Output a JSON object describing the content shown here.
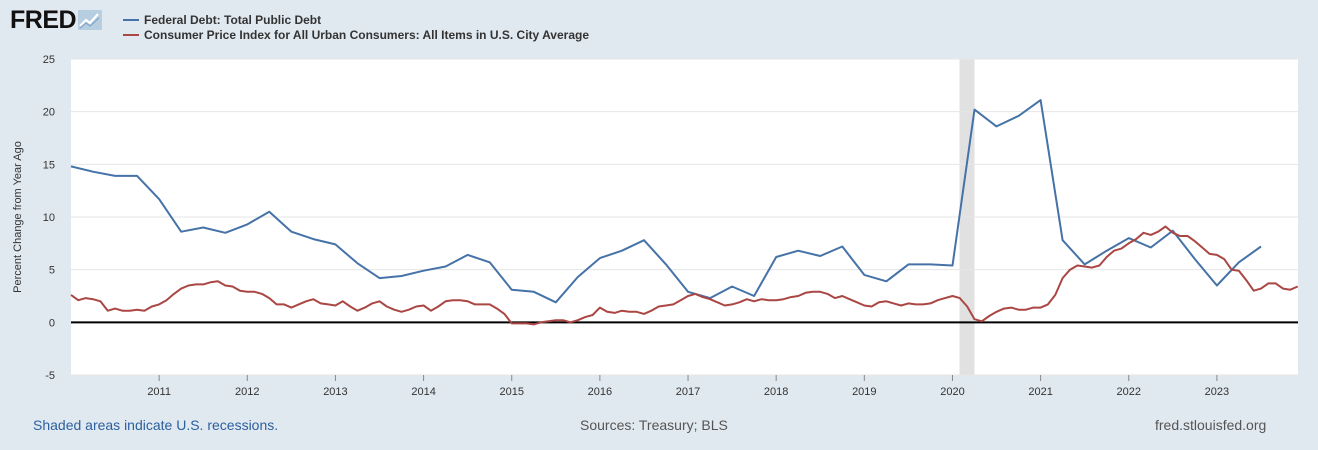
{
  "header": {
    "logo_text": "FRED",
    "logo_icon": "chart-line-icon"
  },
  "chart_data": {
    "type": "line",
    "ylabel": "Percent Change from Year Ago",
    "ylim": [
      -5,
      25
    ],
    "y_ticks": [
      "25",
      "20",
      "15",
      "10",
      "5",
      "0",
      "-5"
    ],
    "x_range": [
      2010.0,
      2023.92
    ],
    "x_ticks": [
      "2011",
      "2012",
      "2013",
      "2014",
      "2015",
      "2016",
      "2017",
      "2018",
      "2019",
      "2020",
      "2021",
      "2022",
      "2023"
    ],
    "grid": true,
    "legend_position": "top-left",
    "recessions": [
      [
        2020.08,
        2020.25
      ]
    ],
    "series": [
      {
        "name": "Federal Debt: Total Public Debt",
        "color": "#4572a7",
        "x": [
          2010.0,
          2010.25,
          2010.5,
          2010.75,
          2011.0,
          2011.25,
          2011.5,
          2011.75,
          2012.0,
          2012.25,
          2012.5,
          2012.75,
          2013.0,
          2013.25,
          2013.5,
          2013.75,
          2014.0,
          2014.25,
          2014.5,
          2014.75,
          2015.0,
          2015.25,
          2015.5,
          2015.75,
          2016.0,
          2016.25,
          2016.5,
          2016.75,
          2017.0,
          2017.25,
          2017.5,
          2017.75,
          2018.0,
          2018.25,
          2018.5,
          2018.75,
          2019.0,
          2019.25,
          2019.5,
          2019.75,
          2020.0,
          2020.25,
          2020.5,
          2020.75,
          2021.0,
          2021.25,
          2021.5,
          2021.75,
          2022.0,
          2022.25,
          2022.5,
          2022.75,
          2023.0,
          2023.25,
          2023.5
        ],
        "values": [
          14.8,
          14.3,
          13.9,
          13.9,
          11.7,
          8.6,
          9.0,
          8.5,
          9.3,
          10.5,
          8.6,
          7.9,
          7.4,
          5.6,
          4.2,
          4.4,
          4.9,
          5.3,
          6.4,
          5.7,
          3.1,
          2.9,
          1.9,
          4.3,
          6.1,
          6.8,
          7.8,
          5.5,
          2.9,
          2.3,
          3.4,
          2.5,
          6.2,
          6.8,
          6.3,
          7.2,
          4.5,
          3.9,
          5.5,
          5.5,
          5.4,
          20.2,
          18.6,
          19.6,
          21.1,
          7.8,
          5.5,
          6.8,
          8.0,
          7.1,
          8.7,
          6.0,
          3.5,
          5.7,
          7.2
        ]
      },
      {
        "name": "Consumer Price Index for All Urban Consumers: All Items in U.S. City Average",
        "color": "#aa4643",
        "x": [
          2010.0,
          2010.083,
          2010.167,
          2010.25,
          2010.333,
          2010.417,
          2010.5,
          2010.583,
          2010.667,
          2010.75,
          2010.833,
          2010.917,
          2011.0,
          2011.083,
          2011.167,
          2011.25,
          2011.333,
          2011.417,
          2011.5,
          2011.583,
          2011.667,
          2011.75,
          2011.833,
          2011.917,
          2012.0,
          2012.083,
          2012.167,
          2012.25,
          2012.333,
          2012.417,
          2012.5,
          2012.583,
          2012.667,
          2012.75,
          2012.833,
          2012.917,
          2013.0,
          2013.083,
          2013.167,
          2013.25,
          2013.333,
          2013.417,
          2013.5,
          2013.583,
          2013.667,
          2013.75,
          2013.833,
          2013.917,
          2014.0,
          2014.083,
          2014.167,
          2014.25,
          2014.333,
          2014.417,
          2014.5,
          2014.583,
          2014.667,
          2014.75,
          2014.833,
          2014.917,
          2015.0,
          2015.083,
          2015.167,
          2015.25,
          2015.333,
          2015.417,
          2015.5,
          2015.583,
          2015.667,
          2015.75,
          2015.833,
          2015.917,
          2016.0,
          2016.083,
          2016.167,
          2016.25,
          2016.333,
          2016.417,
          2016.5,
          2016.583,
          2016.667,
          2016.75,
          2016.833,
          2016.917,
          2017.0,
          2017.083,
          2017.167,
          2017.25,
          2017.333,
          2017.417,
          2017.5,
          2017.583,
          2017.667,
          2017.75,
          2017.833,
          2017.917,
          2018.0,
          2018.083,
          2018.167,
          2018.25,
          2018.333,
          2018.417,
          2018.5,
          2018.583,
          2018.667,
          2018.75,
          2018.833,
          2018.917,
          2019.0,
          2019.083,
          2019.167,
          2019.25,
          2019.333,
          2019.417,
          2019.5,
          2019.583,
          2019.667,
          2019.75,
          2019.833,
          2019.917,
          2020.0,
          2020.083,
          2020.167,
          2020.25,
          2020.333,
          2020.417,
          2020.5,
          2020.583,
          2020.667,
          2020.75,
          2020.833,
          2020.917,
          2021.0,
          2021.083,
          2021.167,
          2021.25,
          2021.333,
          2021.417,
          2021.5,
          2021.583,
          2021.667,
          2021.75,
          2021.833,
          2021.917,
          2022.0,
          2022.083,
          2022.167,
          2022.25,
          2022.333,
          2022.417,
          2022.5,
          2022.583,
          2022.667,
          2022.75,
          2022.833,
          2022.917,
          2023.0,
          2023.083,
          2023.167,
          2023.25,
          2023.333,
          2023.417,
          2023.5,
          2023.583,
          2023.667,
          2023.75,
          2023.833,
          2023.917
        ],
        "values": [
          2.6,
          2.1,
          2.3,
          2.2,
          2.0,
          1.1,
          1.3,
          1.1,
          1.1,
          1.2,
          1.1,
          1.5,
          1.7,
          2.1,
          2.7,
          3.2,
          3.5,
          3.6,
          3.6,
          3.8,
          3.9,
          3.5,
          3.4,
          3.0,
          2.9,
          2.9,
          2.7,
          2.3,
          1.7,
          1.7,
          1.4,
          1.7,
          2.0,
          2.2,
          1.8,
          1.7,
          1.6,
          2.0,
          1.5,
          1.1,
          1.4,
          1.8,
          2.0,
          1.5,
          1.2,
          1.0,
          1.2,
          1.5,
          1.6,
          1.1,
          1.5,
          2.0,
          2.1,
          2.1,
          2.0,
          1.7,
          1.7,
          1.7,
          1.3,
          0.8,
          -0.1,
          -0.1,
          -0.1,
          -0.2,
          0.0,
          0.1,
          0.2,
          0.2,
          0.0,
          0.2,
          0.5,
          0.7,
          1.4,
          1.0,
          0.9,
          1.1,
          1.0,
          1.0,
          0.8,
          1.1,
          1.5,
          1.6,
          1.7,
          2.1,
          2.5,
          2.7,
          2.4,
          2.2,
          1.9,
          1.6,
          1.7,
          1.9,
          2.2,
          2.0,
          2.2,
          2.1,
          2.1,
          2.2,
          2.4,
          2.5,
          2.8,
          2.9,
          2.9,
          2.7,
          2.3,
          2.5,
          2.2,
          1.9,
          1.6,
          1.5,
          1.9,
          2.0,
          1.8,
          1.6,
          1.8,
          1.7,
          1.7,
          1.8,
          2.1,
          2.3,
          2.5,
          2.3,
          1.5,
          0.3,
          0.1,
          0.6,
          1.0,
          1.3,
          1.4,
          1.2,
          1.2,
          1.4,
          1.4,
          1.7,
          2.6,
          4.2,
          5.0,
          5.4,
          5.3,
          5.2,
          5.4,
          6.2,
          6.8,
          7.0,
          7.5,
          7.9,
          8.5,
          8.3,
          8.6,
          9.1,
          8.5,
          8.2,
          8.2,
          7.7,
          7.1,
          6.5,
          6.4,
          6.0,
          5.0,
          4.9,
          4.0,
          3.0,
          3.2,
          3.7,
          3.7,
          3.2,
          3.1,
          3.4
        ]
      }
    ]
  },
  "footer": {
    "recession_note": "Shaded areas indicate U.S. recessions.",
    "sources": "Sources: Treasury; BLS",
    "site": "fred.stlouisfed.org"
  }
}
